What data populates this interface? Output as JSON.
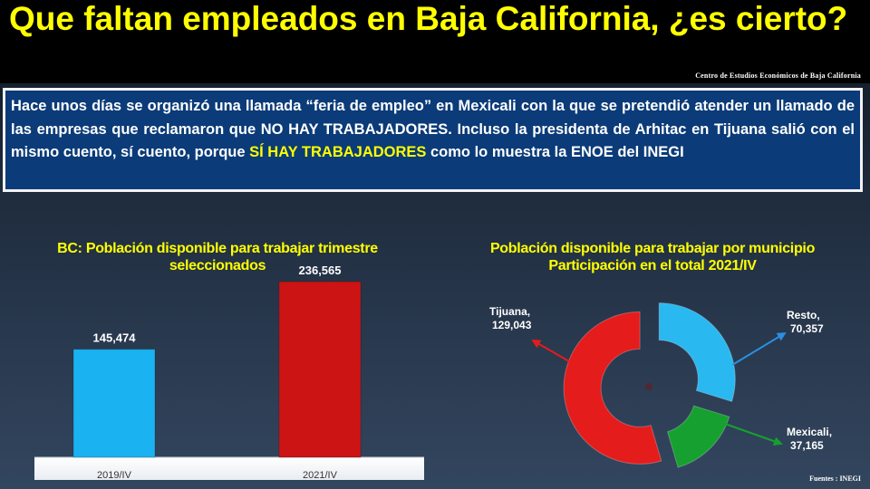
{
  "slide": {
    "title": "Que faltan empleados en Baja California, ¿es cierto?",
    "source_top": "Centro de Estudios  Económicos  de Baja California",
    "body_part1": "Hace unos días se organizó una llamada “feria de empleo” en Mexicali con la que se pretendió atender un llamado de las empresas que reclamaron que NO HAY TRABAJADORES. Incluso la presidenta de Arhitac en Tijuana salió con el mismo cuento, sí cuento, porque ",
    "body_highlight": "SÍ HAY TRABAJADORES",
    "body_part2": " como lo muestra la ENOE del INEGI",
    "fuentes": "Fuentes :  INEGI"
  },
  "colors": {
    "title": "#ffff00",
    "textbox_bg": "#0b3b78",
    "bar_2019": "#1ab2f0",
    "bar_2021": "#cc1414",
    "tijuana": "#e51c1c",
    "resto": "#2ab8f0",
    "mexicali": "#16a030"
  },
  "chart_data": [
    {
      "type": "bar",
      "title": "BC: Población disponible para trabajar trimestre seleccionados",
      "categories": [
        "2019/IV",
        "2021/IV"
      ],
      "values": [
        145474,
        236565
      ],
      "data_labels": [
        "145,474",
        "236,565"
      ],
      "colors": [
        "#1ab2f0",
        "#cc1414"
      ],
      "ylim": [
        0,
        250000
      ],
      "grid": false
    },
    {
      "type": "pie",
      "style": "exploded-doughnut",
      "title": "Población disponible para trabajar por municipio Participación en el total 2021/IV",
      "slices": [
        {
          "label": "Tijuana,",
          "value_label": "129,043",
          "value": 129043,
          "color": "#e51c1c"
        },
        {
          "label": "Resto,",
          "value_label": "70,357",
          "value": 70357,
          "color": "#2ab8f0"
        },
        {
          "label": "Mexicali,",
          "value_label": "37,165",
          "value": 37165,
          "color": "#16a030"
        }
      ]
    }
  ]
}
